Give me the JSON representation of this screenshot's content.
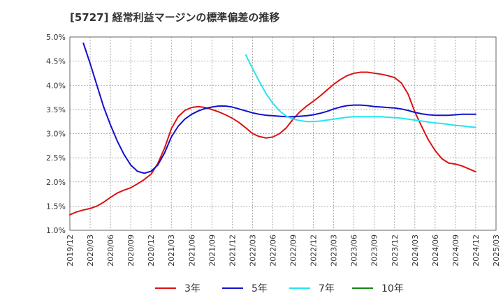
{
  "chart_data": {
    "type": "line",
    "title": "[5727]  経常利益マージンの標準偏差の推移",
    "xlabel": "",
    "ylabel": "",
    "y_tick_labels": [
      "1.0%",
      "1.5%",
      "2.0%",
      "2.5%",
      "3.0%",
      "3.5%",
      "4.0%",
      "4.5%",
      "5.0%"
    ],
    "ylim": [
      1.0,
      5.0
    ],
    "x_tick_labels": [
      "2019/12",
      "2020/03",
      "2020/06",
      "2020/09",
      "2020/12",
      "2021/03",
      "2021/06",
      "2021/09",
      "2021/12",
      "2022/03",
      "2022/06",
      "2022/09",
      "2022/12",
      "2023/03",
      "2023/06",
      "2023/09",
      "2023/12",
      "2024/03",
      "2024/06",
      "2024/09",
      "2024/12",
      "2025/03"
    ],
    "xlim": [
      "2019/12",
      "2025/03"
    ],
    "grid": true,
    "legend_position": "bottom",
    "series": [
      {
        "name": "3年",
        "color": "#dd1111",
        "points": [
          [
            "2019/12",
            1.32
          ],
          [
            "2020/01",
            1.38
          ],
          [
            "2020/02",
            1.42
          ],
          [
            "2020/03",
            1.45
          ],
          [
            "2020/04",
            1.5
          ],
          [
            "2020/05",
            1.58
          ],
          [
            "2020/06",
            1.68
          ],
          [
            "2020/07",
            1.77
          ],
          [
            "2020/08",
            1.83
          ],
          [
            "2020/09",
            1.88
          ],
          [
            "2020/10",
            1.96
          ],
          [
            "2020/11",
            2.05
          ],
          [
            "2020/12",
            2.16
          ],
          [
            "2021/01",
            2.38
          ],
          [
            "2021/02",
            2.7
          ],
          [
            "2021/03",
            3.1
          ],
          [
            "2021/04",
            3.35
          ],
          [
            "2021/05",
            3.48
          ],
          [
            "2021/06",
            3.54
          ],
          [
            "2021/07",
            3.56
          ],
          [
            "2021/08",
            3.54
          ],
          [
            "2021/09",
            3.5
          ],
          [
            "2021/10",
            3.45
          ],
          [
            "2021/11",
            3.39
          ],
          [
            "2021/12",
            3.32
          ],
          [
            "2022/01",
            3.23
          ],
          [
            "2022/02",
            3.12
          ],
          [
            "2022/03",
            3.0
          ],
          [
            "2022/04",
            2.94
          ],
          [
            "2022/05",
            2.91
          ],
          [
            "2022/06",
            2.93
          ],
          [
            "2022/07",
            3.0
          ],
          [
            "2022/08",
            3.12
          ],
          [
            "2022/09",
            3.3
          ],
          [
            "2022/10",
            3.45
          ],
          [
            "2022/11",
            3.57
          ],
          [
            "2022/12",
            3.67
          ],
          [
            "2023/01",
            3.78
          ],
          [
            "2023/02",
            3.9
          ],
          [
            "2023/03",
            4.02
          ],
          [
            "2023/04",
            4.12
          ],
          [
            "2023/05",
            4.2
          ],
          [
            "2023/06",
            4.25
          ],
          [
            "2023/07",
            4.27
          ],
          [
            "2023/08",
            4.27
          ],
          [
            "2023/09",
            4.25
          ],
          [
            "2023/10",
            4.23
          ],
          [
            "2023/11",
            4.2
          ],
          [
            "2023/12",
            4.16
          ],
          [
            "2024/01",
            4.05
          ],
          [
            "2024/02",
            3.82
          ],
          [
            "2024/03",
            3.45
          ],
          [
            "2024/04",
            3.15
          ],
          [
            "2024/05",
            2.87
          ],
          [
            "2024/06",
            2.65
          ],
          [
            "2024/07",
            2.48
          ],
          [
            "2024/08",
            2.39
          ],
          [
            "2024/09",
            2.37
          ],
          [
            "2024/10",
            2.33
          ],
          [
            "2024/11",
            2.27
          ],
          [
            "2024/12",
            2.21
          ]
        ]
      },
      {
        "name": "5年",
        "color": "#1111cc",
        "points": [
          [
            "2020/02",
            4.87
          ],
          [
            "2020/03",
            4.45
          ],
          [
            "2020/04",
            4.0
          ],
          [
            "2020/05",
            3.55
          ],
          [
            "2020/06",
            3.18
          ],
          [
            "2020/07",
            2.85
          ],
          [
            "2020/08",
            2.57
          ],
          [
            "2020/09",
            2.35
          ],
          [
            "2020/10",
            2.22
          ],
          [
            "2020/11",
            2.18
          ],
          [
            "2020/12",
            2.22
          ],
          [
            "2021/01",
            2.35
          ],
          [
            "2021/02",
            2.6
          ],
          [
            "2021/03",
            2.93
          ],
          [
            "2021/04",
            3.15
          ],
          [
            "2021/05",
            3.3
          ],
          [
            "2021/06",
            3.4
          ],
          [
            "2021/07",
            3.47
          ],
          [
            "2021/08",
            3.52
          ],
          [
            "2021/09",
            3.55
          ],
          [
            "2021/10",
            3.57
          ],
          [
            "2021/11",
            3.57
          ],
          [
            "2021/12",
            3.55
          ],
          [
            "2022/01",
            3.51
          ],
          [
            "2022/02",
            3.47
          ],
          [
            "2022/03",
            3.43
          ],
          [
            "2022/04",
            3.4
          ],
          [
            "2022/05",
            3.38
          ],
          [
            "2022/06",
            3.37
          ],
          [
            "2022/07",
            3.36
          ],
          [
            "2022/08",
            3.35
          ],
          [
            "2022/09",
            3.35
          ],
          [
            "2022/10",
            3.36
          ],
          [
            "2022/11",
            3.37
          ],
          [
            "2022/12",
            3.39
          ],
          [
            "2023/01",
            3.42
          ],
          [
            "2023/02",
            3.46
          ],
          [
            "2023/03",
            3.51
          ],
          [
            "2023/04",
            3.55
          ],
          [
            "2023/05",
            3.58
          ],
          [
            "2023/06",
            3.59
          ],
          [
            "2023/07",
            3.59
          ],
          [
            "2023/08",
            3.58
          ],
          [
            "2023/09",
            3.56
          ],
          [
            "2023/10",
            3.55
          ],
          [
            "2023/11",
            3.54
          ],
          [
            "2023/12",
            3.53
          ],
          [
            "2024/01",
            3.51
          ],
          [
            "2024/02",
            3.48
          ],
          [
            "2024/03",
            3.44
          ],
          [
            "2024/04",
            3.41
          ],
          [
            "2024/05",
            3.39
          ],
          [
            "2024/06",
            3.38
          ],
          [
            "2024/07",
            3.38
          ],
          [
            "2024/08",
            3.38
          ],
          [
            "2024/09",
            3.39
          ],
          [
            "2024/10",
            3.4
          ],
          [
            "2024/11",
            3.4
          ],
          [
            "2024/12",
            3.4
          ]
        ]
      },
      {
        "name": "7年",
        "color": "#22e6ee",
        "points": [
          [
            "2022/02",
            4.63
          ],
          [
            "2022/03",
            4.35
          ],
          [
            "2022/04",
            4.08
          ],
          [
            "2022/05",
            3.83
          ],
          [
            "2022/06",
            3.63
          ],
          [
            "2022/07",
            3.47
          ],
          [
            "2022/08",
            3.36
          ],
          [
            "2022/09",
            3.3
          ],
          [
            "2022/10",
            3.27
          ],
          [
            "2022/11",
            3.25
          ],
          [
            "2022/12",
            3.25
          ],
          [
            "2023/01",
            3.26
          ],
          [
            "2023/02",
            3.28
          ],
          [
            "2023/03",
            3.3
          ],
          [
            "2023/04",
            3.32
          ],
          [
            "2023/05",
            3.34
          ],
          [
            "2023/06",
            3.35
          ],
          [
            "2023/07",
            3.35
          ],
          [
            "2023/08",
            3.35
          ],
          [
            "2023/09",
            3.35
          ],
          [
            "2023/10",
            3.35
          ],
          [
            "2023/11",
            3.34
          ],
          [
            "2023/12",
            3.33
          ],
          [
            "2024/01",
            3.32
          ],
          [
            "2024/02",
            3.3
          ],
          [
            "2024/03",
            3.28
          ],
          [
            "2024/04",
            3.26
          ],
          [
            "2024/05",
            3.24
          ],
          [
            "2024/06",
            3.22
          ],
          [
            "2024/07",
            3.21
          ],
          [
            "2024/08",
            3.19
          ],
          [
            "2024/09",
            3.17
          ],
          [
            "2024/10",
            3.16
          ],
          [
            "2024/11",
            3.14
          ],
          [
            "2024/12",
            3.13
          ]
        ]
      },
      {
        "name": "10年",
        "color": "#118811",
        "points": []
      }
    ]
  }
}
